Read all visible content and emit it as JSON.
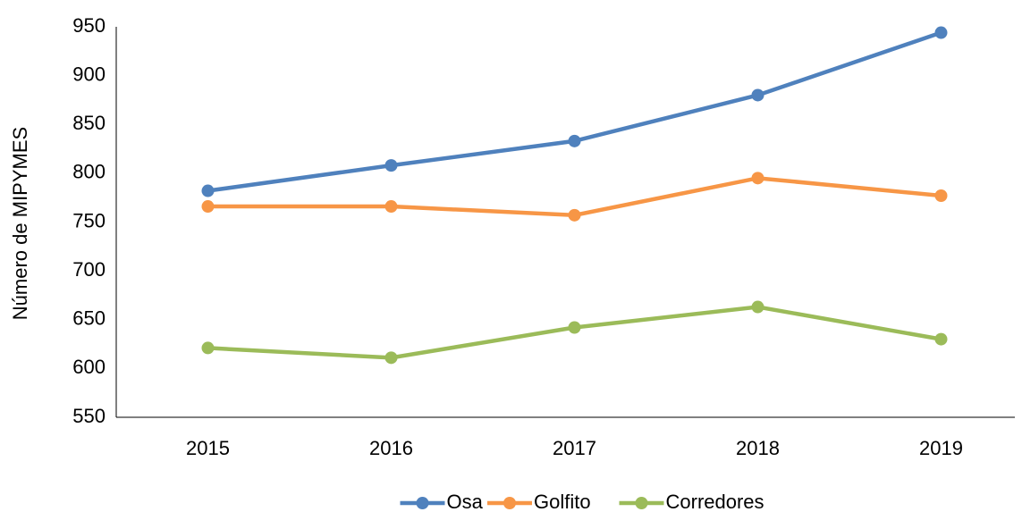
{
  "chart_data": {
    "type": "line",
    "y_label": "Número de MIPYMES",
    "categories": [
      "2015",
      "2016",
      "2017",
      "2018",
      "2019"
    ],
    "series": [
      {
        "name": "Osa",
        "color": "#4f81bd",
        "values": [
          782,
          808,
          833,
          880,
          944
        ]
      },
      {
        "name": "Golfito",
        "color": "#f79646",
        "values": [
          766,
          766,
          757,
          795,
          777
        ]
      },
      {
        "name": "Corredores",
        "color": "#9bbb59",
        "values": [
          621,
          611,
          642,
          663,
          630
        ]
      }
    ],
    "ylim": [
      550,
      950
    ],
    "yticks": [
      550,
      600,
      650,
      700,
      750,
      800,
      850,
      900,
      950
    ],
    "grid": false,
    "legend": "bottom"
  }
}
